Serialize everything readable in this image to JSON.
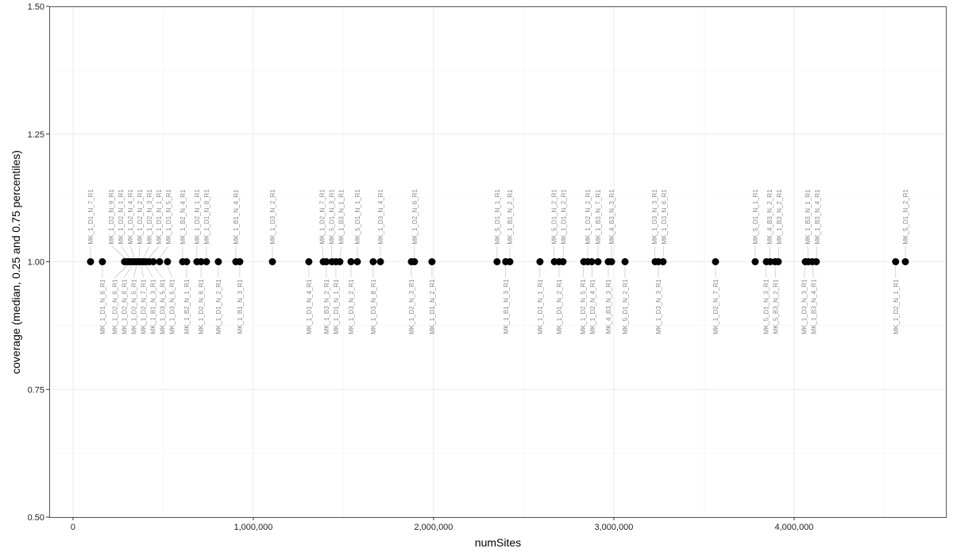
{
  "chart_data": {
    "type": "scatter",
    "xlabel": "numSites",
    "ylabel": "coverage (median, 0.25 and 0.75 percentiles)",
    "xlim": [
      -132000,
      4846000
    ],
    "ylim": [
      0.5,
      1.5
    ],
    "x_ticks": [
      0,
      1000000,
      2000000,
      3000000,
      4000000
    ],
    "x_tick_labels": [
      "0",
      "1,000,000",
      "2,000,000",
      "3,000,000",
      "4,000,000"
    ],
    "y_ticks": [
      0.5,
      0.75,
      1.0,
      1.25,
      1.5
    ],
    "y_tick_labels": [
      "0.50",
      "0.75",
      "1.00",
      "1.25",
      "1.50"
    ],
    "grid": true,
    "point_color": "#000000",
    "label_color": "#888888",
    "points": [
      {
        "x": 97000,
        "y": 1,
        "label": "MK_1_D1_N_7_R1"
      },
      {
        "x": 163000,
        "y": 1,
        "label": "MK_1_D1_N_6_R1"
      },
      {
        "x": 286000,
        "y": 1,
        "label": "MK_1_D2_N_9_R1"
      },
      {
        "x": 300000,
        "y": 1,
        "label": "MK_1_D2_N_6_R1"
      },
      {
        "x": 313000,
        "y": 1,
        "label": "MK_1_D2_N_1_R1"
      },
      {
        "x": 326000,
        "y": 1,
        "label": "MK_1_D2_N_8_R1"
      },
      {
        "x": 339000,
        "y": 1,
        "label": "MK_1_D2_N_4_R1"
      },
      {
        "x": 352000,
        "y": 1,
        "label": "MK_1_D2_N_5_R1"
      },
      {
        "x": 366000,
        "y": 1,
        "label": "MK_1_D2_N_2_R1"
      },
      {
        "x": 379000,
        "y": 1,
        "label": "MK_1_D2_N_7_R1"
      },
      {
        "x": 392000,
        "y": 1,
        "label": "MK_1_D2_N_3_R1"
      },
      {
        "x": 405000,
        "y": 1,
        "label": "MK_1_B1_N_3_R1"
      },
      {
        "x": 423000,
        "y": 1,
        "label": "MK_1_D1_N_1_R1"
      },
      {
        "x": 445000,
        "y": 1,
        "label": "MK_1_D3_N_5_R1"
      },
      {
        "x": 480000,
        "y": 1,
        "label": "MK_1_D1_N_5_R1"
      },
      {
        "x": 524000,
        "y": 1,
        "label": "MK_1_D3_N_5_R1"
      },
      {
        "x": 608000,
        "y": 1,
        "label": "MK_1_B2_N_4_R1"
      },
      {
        "x": 630000,
        "y": 1,
        "label": "MK_1_B2_N_1_R1"
      },
      {
        "x": 687000,
        "y": 1,
        "label": "MK_1_D2_N_1_R1"
      },
      {
        "x": 710000,
        "y": 1,
        "label": "MK_1_D2_N_6_R1"
      },
      {
        "x": 740000,
        "y": 1,
        "label": "MK_1_D1_N_8_R1"
      },
      {
        "x": 806000,
        "y": 1,
        "label": "MK_1_D1_N_2_R1"
      },
      {
        "x": 903000,
        "y": 1,
        "label": "MK_1_B1_N_4_R1"
      },
      {
        "x": 925000,
        "y": 1,
        "label": "MK_1_B1_N_3_R1"
      },
      {
        "x": 1106000,
        "y": 1,
        "label": "MK_1_D3_N_2_R1"
      },
      {
        "x": 1308000,
        "y": 1,
        "label": "MK_1_D1_N_4_R1"
      },
      {
        "x": 1388000,
        "y": 1,
        "label": "MK_1_D2_N_7_R1"
      },
      {
        "x": 1405000,
        "y": 1,
        "label": "MK_1_B3_N_2_R1"
      },
      {
        "x": 1436000,
        "y": 1,
        "label": "MK_5_D1_N_3_R1"
      },
      {
        "x": 1458000,
        "y": 1,
        "label": "MK_1_D1_N_1_R1"
      },
      {
        "x": 1480000,
        "y": 1,
        "label": "MK_1_B3_N_1_R1"
      },
      {
        "x": 1542000,
        "y": 1,
        "label": "MK_1_D3_N_2_R1"
      },
      {
        "x": 1577000,
        "y": 1,
        "label": "MK_5_D1_N_1_R1"
      },
      {
        "x": 1665000,
        "y": 1,
        "label": "MK_1_D3_N_8_R1"
      },
      {
        "x": 1705000,
        "y": 1,
        "label": "MK_1_D3_N_4_R1"
      },
      {
        "x": 1877000,
        "y": 1,
        "label": "MK_1_D2_N_3_R1"
      },
      {
        "x": 1894000,
        "y": 1,
        "label": "MK_1_D2_N_6_R1"
      },
      {
        "x": 1991000,
        "y": 1,
        "label": "MK_1_D1_N_2_R1"
      },
      {
        "x": 2352000,
        "y": 1,
        "label": "MK_5_D1_N_1_R1"
      },
      {
        "x": 2400000,
        "y": 1,
        "label": "MK_1_B1_N_3_R1"
      },
      {
        "x": 2423000,
        "y": 1,
        "label": "MK_1_B1_N_2_R1"
      },
      {
        "x": 2590000,
        "y": 1,
        "label": "MK_1_D1_N_1_R1"
      },
      {
        "x": 2670000,
        "y": 1,
        "label": "MK_5_D1_N_2_R1"
      },
      {
        "x": 2696000,
        "y": 1,
        "label": "MK_1_D1_N_2_R1"
      },
      {
        "x": 2718000,
        "y": 1,
        "label": "MK_1_D1_N_2_R1"
      },
      {
        "x": 2833000,
        "y": 1,
        "label": "MK_1_D2_N_5_R1"
      },
      {
        "x": 2855000,
        "y": 1,
        "label": "MK_1_D2_N_2_R1"
      },
      {
        "x": 2877000,
        "y": 1,
        "label": "MK_1_D2_N_4_R1"
      },
      {
        "x": 2912000,
        "y": 1,
        "label": "MK_1_B3_N_7_R1"
      },
      {
        "x": 2969000,
        "y": 1,
        "label": "MK_4_B3_N_3_R1"
      },
      {
        "x": 2987000,
        "y": 1,
        "label": "MK_4_B3_N_3_R1"
      },
      {
        "x": 3062000,
        "y": 1,
        "label": "MK_5_D1_N_2_R1"
      },
      {
        "x": 3229000,
        "y": 1,
        "label": "MK_1_D3_N_3_R1"
      },
      {
        "x": 3247000,
        "y": 1,
        "label": "MK_1_D3_N_3_R1"
      },
      {
        "x": 3273000,
        "y": 1,
        "label": "MK_1_D3_N_6_R1"
      },
      {
        "x": 3564000,
        "y": 1,
        "label": "MK_1_D2_N_7_R1"
      },
      {
        "x": 3784000,
        "y": 1,
        "label": "MK_5_D1_N_1_R1"
      },
      {
        "x": 3846000,
        "y": 1,
        "label": "MK_5_D1_N_3_R1"
      },
      {
        "x": 3867000,
        "y": 1,
        "label": "MK_4_B3_N_2_R1"
      },
      {
        "x": 3894000,
        "y": 1,
        "label": "MK_5_B3_N_2_R1"
      },
      {
        "x": 3912000,
        "y": 1,
        "label": "MK_1_B3_N_2_R1"
      },
      {
        "x": 4062000,
        "y": 1,
        "label": "MK_1_D3_N_3_R1"
      },
      {
        "x": 4079000,
        "y": 1,
        "label": "MK_1_B3_N_1_R1"
      },
      {
        "x": 4101000,
        "y": 1,
        "label": "MK_1_B3_N_4_R1"
      },
      {
        "x": 4123000,
        "y": 1,
        "label": "MK_1_B3_N_4_R1"
      },
      {
        "x": 4563000,
        "y": 1,
        "label": "MK_1_D2_N_1_R1"
      },
      {
        "x": 4617000,
        "y": 1,
        "label": "MK_5_D1_N_2_R1"
      }
    ]
  }
}
